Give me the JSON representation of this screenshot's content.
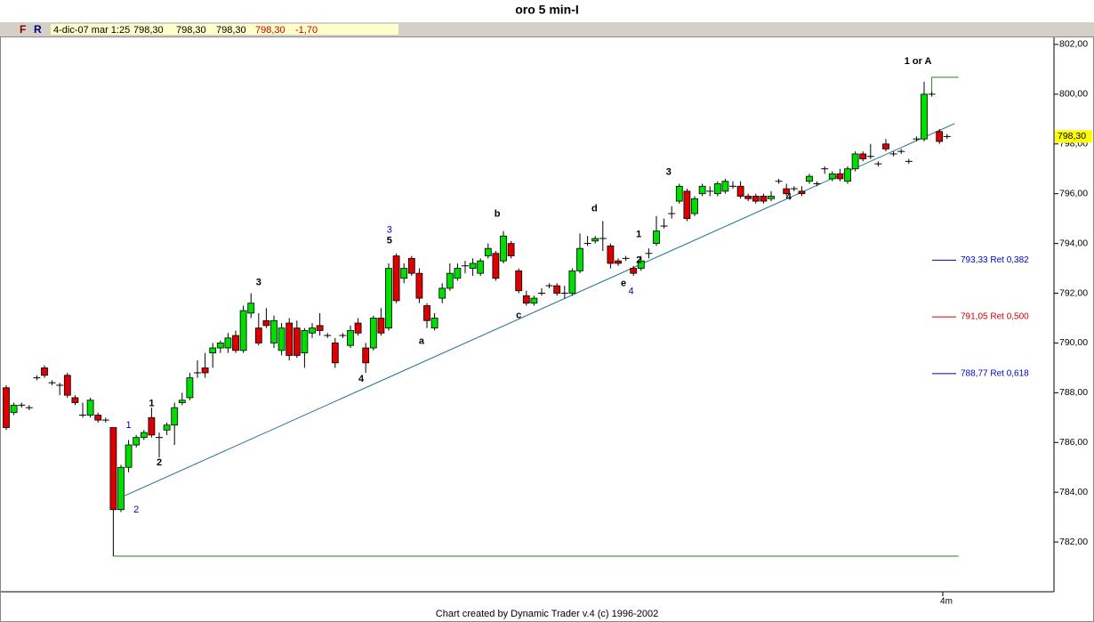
{
  "chart_data": {
    "type": "candlestick",
    "title": "oro 5 min-I",
    "footer": "Chart created by Dynamic Trader v.4  (c)  1996-2002",
    "info_bar": [
      {
        "text": "F",
        "color": "#800000"
      },
      {
        "text": "R",
        "color": "#000080"
      },
      {
        "text": "4-dic-07 mar 1:25",
        "color": "#000000"
      },
      {
        "text": "798,30",
        "color": "#000000"
      },
      {
        "text": "798,30",
        "color": "#000000"
      },
      {
        "text": "798,30",
        "color": "#000000"
      },
      {
        "text": "798,30",
        "color": "#cc0000"
      },
      {
        "text": "-1,70",
        "color": "#cc0000"
      }
    ],
    "x_tick_label": "4m",
    "up_color": "#00dd00",
    "down_color": "#dd0000",
    "ylim": [
      780,
      802.32
    ],
    "yticks": [
      {
        "value": 782,
        "label": "782,00"
      },
      {
        "value": 784,
        "label": "784,00"
      },
      {
        "value": 786,
        "label": "786,00"
      },
      {
        "value": 788,
        "label": "788,00"
      },
      {
        "value": 790,
        "label": "790,00"
      },
      {
        "value": 792,
        "label": "792,00"
      },
      {
        "value": 794,
        "label": "794,00"
      },
      {
        "value": 796,
        "label": "796,00"
      },
      {
        "value": 798,
        "label": "798,00"
      },
      {
        "value": 800,
        "label": "800,00"
      },
      {
        "value": 802,
        "label": "802,00"
      }
    ],
    "last_price": {
      "value": 798.3,
      "label": "798,30"
    },
    "ohlc": [
      [
        788.2,
        788.3,
        786.5,
        786.6
      ],
      [
        787.2,
        787.6,
        787.1,
        787.5
      ],
      [
        787.5,
        787.6,
        787.4,
        787.5
      ],
      [
        787.4,
        787.5,
        787.3,
        787.4
      ],
      [
        788.6,
        788.7,
        788.5,
        788.6
      ],
      [
        789.0,
        789.1,
        788.6,
        788.7
      ],
      [
        788.4,
        788.5,
        788.3,
        788.4
      ],
      [
        788.3,
        788.4,
        787.9,
        788.3
      ],
      [
        788.7,
        788.8,
        787.8,
        787.9
      ],
      [
        787.8,
        787.9,
        787.5,
        787.6
      ],
      [
        787.1,
        787.6,
        787.0,
        787.1
      ],
      [
        787.1,
        787.8,
        787.0,
        787.7
      ],
      [
        787.1,
        787.2,
        786.8,
        786.9
      ],
      [
        786.9,
        787.0,
        786.8,
        786.9
      ],
      [
        786.6,
        786.6,
        781.43,
        783.3
      ],
      [
        783.3,
        785.1,
        783.2,
        785.0
      ],
      [
        785.0,
        786.1,
        784.8,
        785.9
      ],
      [
        785.9,
        786.3,
        785.8,
        786.2
      ],
      [
        786.2,
        786.5,
        786.1,
        786.4
      ],
      [
        787.0,
        787.4,
        786.2,
        786.3
      ],
      [
        786.2,
        786.4,
        785.4,
        786.2
      ],
      [
        786.5,
        786.8,
        786.3,
        786.7
      ],
      [
        786.7,
        787.6,
        785.9,
        787.4
      ],
      [
        787.6,
        788.0,
        787.5,
        787.7
      ],
      [
        787.8,
        788.8,
        787.7,
        788.6
      ],
      [
        788.8,
        789.3,
        788.6,
        788.8
      ],
      [
        789.0,
        789.6,
        788.6,
        788.8
      ],
      [
        789.6,
        790.0,
        789.0,
        789.8
      ],
      [
        789.8,
        790.1,
        789.6,
        790.0
      ],
      [
        789.8,
        790.4,
        789.6,
        790.2
      ],
      [
        790.3,
        790.5,
        789.6,
        789.7
      ],
      [
        789.7,
        791.5,
        789.6,
        791.3
      ],
      [
        791.2,
        792.0,
        791.0,
        791.6
      ],
      [
        790.6,
        791.2,
        789.9,
        790.0
      ],
      [
        790.9,
        791.4,
        790.6,
        790.7
      ],
      [
        790.0,
        791.1,
        789.8,
        790.9
      ],
      [
        789.7,
        790.8,
        789.5,
        790.6
      ],
      [
        790.8,
        791.0,
        789.3,
        789.5
      ],
      [
        790.6,
        790.9,
        789.4,
        789.5
      ],
      [
        789.6,
        790.6,
        789.0,
        790.5
      ],
      [
        790.4,
        790.8,
        790.2,
        790.6
      ],
      [
        790.7,
        791.2,
        790.3,
        790.5
      ],
      [
        790.3,
        790.4,
        790.2,
        790.3
      ],
      [
        790.0,
        790.2,
        789.0,
        789.2
      ],
      [
        790.3,
        790.4,
        790.2,
        790.3
      ],
      [
        789.9,
        790.7,
        789.8,
        790.5
      ],
      [
        790.8,
        791.0,
        790.3,
        790.4
      ],
      [
        789.8,
        790.0,
        788.8,
        789.2
      ],
      [
        789.8,
        791.1,
        789.7,
        791.0
      ],
      [
        791.0,
        791.4,
        790.3,
        790.4
      ],
      [
        790.6,
        793.2,
        790.5,
        793.0
      ],
      [
        793.5,
        793.6,
        791.6,
        791.7
      ],
      [
        792.6,
        793.2,
        792.4,
        793.0
      ],
      [
        793.4,
        793.5,
        792.7,
        792.8
      ],
      [
        792.8,
        793.0,
        791.6,
        791.8
      ],
      [
        791.5,
        791.6,
        790.6,
        790.9
      ],
      [
        790.6,
        791.2,
        790.5,
        791.0
      ],
      [
        791.8,
        792.4,
        791.6,
        792.2
      ],
      [
        792.2,
        793.2,
        792.1,
        792.8
      ],
      [
        792.6,
        793.2,
        792.5,
        793.0
      ],
      [
        793.1,
        793.3,
        792.8,
        793.1
      ],
      [
        793.0,
        793.4,
        792.7,
        793.2
      ],
      [
        792.8,
        793.4,
        792.7,
        793.3
      ],
      [
        793.5,
        794.0,
        793.4,
        793.8
      ],
      [
        793.6,
        793.7,
        792.5,
        792.6
      ],
      [
        793.3,
        794.5,
        793.2,
        794.3
      ],
      [
        794.0,
        794.1,
        793.4,
        793.5
      ],
      [
        792.9,
        793.0,
        792.0,
        792.1
      ],
      [
        791.9,
        792.1,
        791.5,
        791.6
      ],
      [
        791.6,
        791.9,
        791.5,
        791.8
      ],
      [
        792.0,
        792.2,
        791.9,
        792.0
      ],
      [
        792.3,
        792.4,
        792.2,
        792.3
      ],
      [
        792.3,
        792.4,
        791.9,
        792.0
      ],
      [
        792.0,
        792.3,
        791.8,
        792.0
      ],
      [
        792.0,
        793.0,
        791.9,
        792.9
      ],
      [
        792.9,
        794.4,
        792.8,
        793.8
      ],
      [
        794.0,
        794.3,
        793.9,
        794.0
      ],
      [
        794.1,
        794.3,
        794.0,
        794.2
      ],
      [
        794.2,
        794.9,
        793.7,
        794.2
      ],
      [
        793.9,
        794.0,
        793.0,
        793.2
      ],
      [
        793.3,
        793.4,
        793.1,
        793.2
      ],
      [
        793.4,
        793.5,
        793.3,
        793.4
      ],
      [
        793.0,
        793.1,
        792.7,
        792.8
      ],
      [
        793.0,
        793.5,
        792.9,
        793.3
      ],
      [
        793.6,
        793.8,
        793.4,
        793.6
      ],
      [
        794.0,
        795.1,
        793.9,
        794.5
      ],
      [
        794.7,
        795.0,
        794.6,
        794.7
      ],
      [
        795.2,
        795.5,
        795.0,
        795.2
      ],
      [
        795.7,
        796.4,
        795.6,
        796.3
      ],
      [
        796.1,
        796.2,
        794.9,
        795.0
      ],
      [
        795.2,
        795.9,
        795.1,
        795.8
      ],
      [
        796.0,
        796.4,
        795.9,
        796.3
      ],
      [
        796.1,
        796.3,
        795.9,
        796.1
      ],
      [
        796.0,
        796.5,
        795.9,
        796.4
      ],
      [
        796.1,
        796.6,
        796.0,
        796.5
      ],
      [
        796.3,
        796.5,
        796.2,
        796.3
      ],
      [
        796.3,
        796.5,
        795.8,
        795.9
      ],
      [
        795.9,
        796.0,
        795.7,
        795.8
      ],
      [
        795.9,
        796.0,
        795.6,
        795.7
      ],
      [
        795.9,
        796.0,
        795.6,
        795.7
      ],
      [
        795.8,
        796.1,
        795.7,
        795.9
      ],
      [
        796.5,
        796.6,
        796.4,
        796.5
      ],
      [
        796.2,
        796.4,
        795.9,
        796.0
      ],
      [
        796.2,
        796.3,
        796.1,
        796.2
      ],
      [
        796.1,
        796.3,
        795.9,
        796.0
      ],
      [
        796.5,
        796.8,
        796.4,
        796.7
      ],
      [
        796.4,
        796.5,
        796.3,
        796.4
      ],
      [
        797.0,
        797.1,
        796.8,
        797.0
      ],
      [
        796.6,
        796.9,
        796.5,
        796.8
      ],
      [
        796.8,
        797.0,
        796.5,
        796.6
      ],
      [
        796.5,
        797.1,
        796.4,
        797.0
      ],
      [
        797.0,
        797.7,
        796.9,
        797.6
      ],
      [
        797.6,
        797.7,
        797.3,
        797.4
      ],
      [
        797.5,
        798.0,
        797.4,
        797.5
      ],
      [
        797.2,
        797.3,
        797.1,
        797.2
      ],
      [
        798.0,
        798.2,
        797.7,
        797.8
      ],
      [
        797.6,
        797.7,
        797.5,
        797.6
      ],
      [
        797.7,
        797.8,
        797.6,
        797.7
      ],
      [
        797.3,
        797.4,
        797.2,
        797.3
      ],
      [
        798.2,
        798.3,
        798.1,
        798.2
      ],
      [
        798.2,
        800.5,
        798.1,
        800.0
      ],
      [
        800.0,
        800.1,
        799.9,
        800.0
      ],
      [
        798.5,
        798.6,
        798.0,
        798.1
      ],
      [
        798.3,
        798.4,
        798.2,
        798.3
      ]
    ],
    "lines": [
      {
        "x": [
          15.5,
          124
        ],
        "y": [
          783.86,
          798.82
        ],
        "color": "#1f6f8b"
      },
      {
        "x": [
          14,
          124.5
        ],
        "y": [
          781.43,
          781.43
        ],
        "color": "#2e7d2e"
      },
      {
        "x": [
          121,
          121,
          124.5
        ],
        "y": [
          800.0,
          800.68,
          800.68
        ],
        "color": "#2e7d2e"
      }
    ],
    "retracements": [
      {
        "value": 793.33,
        "label": "793,33 Ret 0,382",
        "color": "#0000cc"
      },
      {
        "value": 791.05,
        "label": "791,05 Ret 0,500",
        "color": "#cc0000"
      },
      {
        "value": 788.77,
        "label": "788,77 Ret 0,618",
        "color": "#0000cc"
      }
    ],
    "wave_labels": [
      {
        "text": "1",
        "i": 16,
        "v": 786.68,
        "color": "#0000cc"
      },
      {
        "text": "2",
        "i": 17,
        "v": 783.29,
        "color": "#0000cc"
      },
      {
        "text": "1",
        "i": 19,
        "v": 787.57,
        "color": "#000000"
      },
      {
        "text": "2",
        "i": 20,
        "v": 785.18,
        "color": "#000000"
      },
      {
        "text": "3",
        "i": 33,
        "v": 792.43,
        "color": "#000000"
      },
      {
        "text": "3",
        "i": 50.1,
        "v": 794.54,
        "color": "#0000cc"
      },
      {
        "text": "5",
        "i": 50.1,
        "v": 794.11,
        "color": "#000000"
      },
      {
        "text": "4",
        "i": 46.4,
        "v": 788.54,
        "color": "#000000"
      },
      {
        "text": "a",
        "i": 54.3,
        "v": 790.07,
        "color": "#000000"
      },
      {
        "text": "b",
        "i": 64.2,
        "v": 795.18,
        "color": "#000000"
      },
      {
        "text": "c",
        "i": 67,
        "v": 791.11,
        "color": "#000000"
      },
      {
        "text": "d",
        "i": 76.9,
        "v": 795.39,
        "color": "#000000"
      },
      {
        "text": "e",
        "i": 80.7,
        "v": 792.39,
        "color": "#000000"
      },
      {
        "text": "4",
        "i": 81.7,
        "v": 792.07,
        "color": "#0000cc"
      },
      {
        "text": "1",
        "i": 82.7,
        "v": 794.36,
        "color": "#000000"
      },
      {
        "text": "2",
        "i": 82.7,
        "v": 793.32,
        "color": "#000000"
      },
      {
        "text": "3",
        "i": 86.6,
        "v": 796.86,
        "color": "#000000"
      },
      {
        "text": "4",
        "i": 102.3,
        "v": 795.86,
        "color": "#000000"
      },
      {
        "text": "1 or A",
        "i": 119.2,
        "v": 801.32,
        "color": "#000000"
      }
    ]
  }
}
